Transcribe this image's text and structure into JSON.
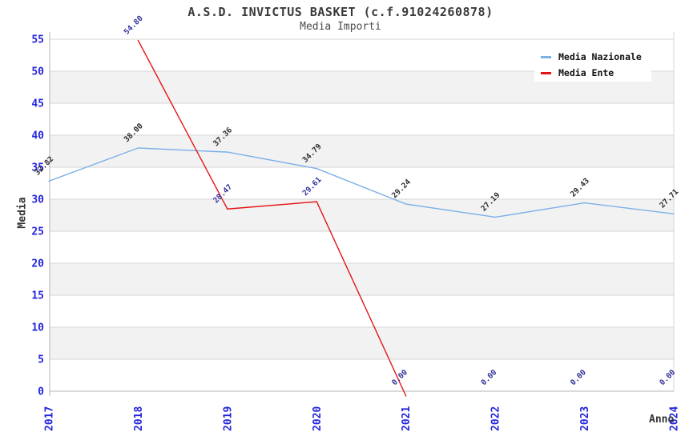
{
  "chart_data": {
    "type": "line",
    "title": "A.S.D. INVICTUS BASKET (c.f.91024260878)",
    "subtitle": "Media Importi",
    "xlabel": "Anno",
    "ylabel": "Media",
    "x": [
      "2017",
      "2018",
      "2019",
      "2020",
      "2021",
      "2022",
      "2023",
      "2024"
    ],
    "ylim": [
      0,
      55
    ],
    "ytick_step": 5,
    "grid": "horizontal-gridlines-with-alternating-bands",
    "legend_position": "top-right",
    "series": [
      {
        "name": "Media Nazionale",
        "color": "#7db1e8",
        "label_color": "#2b2b2b",
        "values": [
          32.82,
          38.0,
          37.36,
          34.79,
          29.24,
          27.19,
          29.43,
          27.71
        ]
      },
      {
        "name": "Media Ente",
        "color": "#e51414",
        "label_color": "#32329b",
        "values": [
          null,
          54.8,
          28.47,
          29.61,
          0.0,
          0.0,
          0.0,
          0.0
        ]
      }
    ]
  },
  "colors": {
    "background": "#ffffff",
    "band": "#f2f2f2",
    "gridline": "#d6d6d6",
    "axis_line": "#b4b4b4",
    "axis_tick_label": "#2424dd",
    "title_text": "#3a3a3a"
  }
}
